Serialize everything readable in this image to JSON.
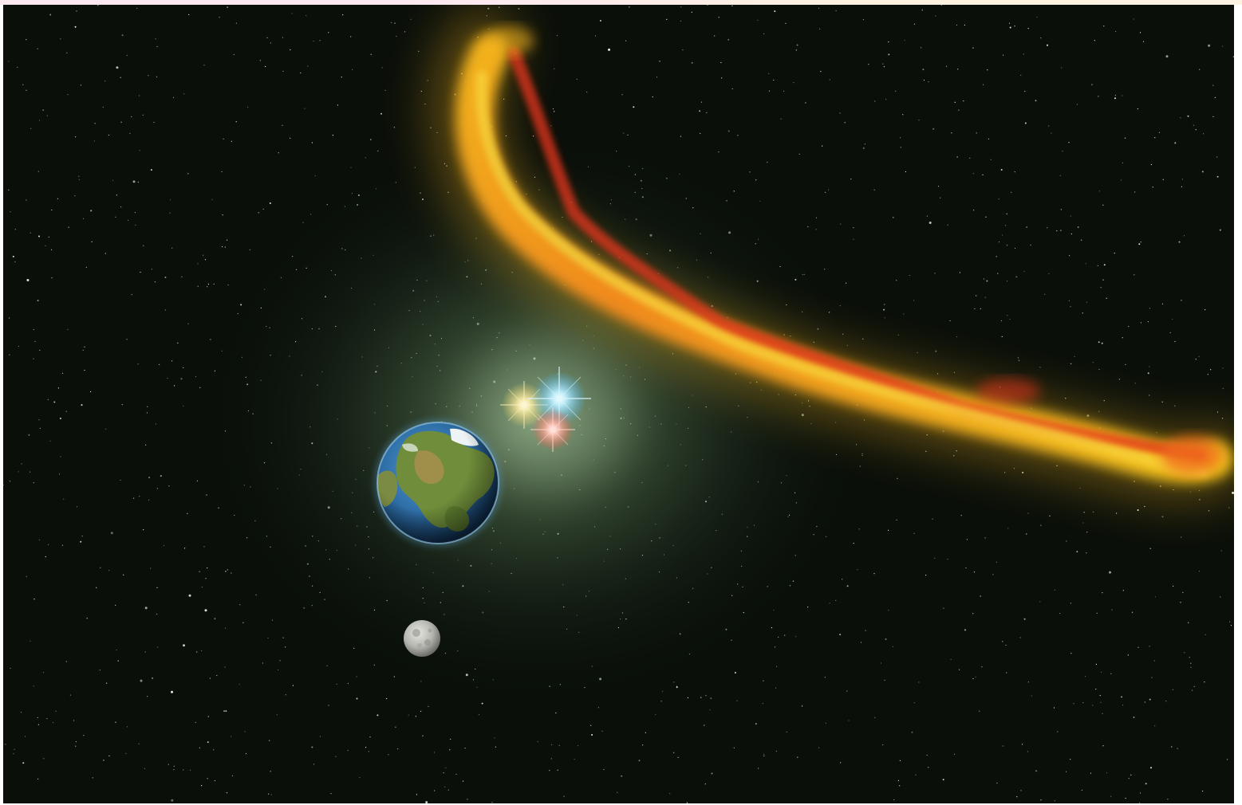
{
  "scene": {
    "type": "illustration",
    "objects": [
      {
        "name": "earth",
        "kind": "planet"
      },
      {
        "name": "moon",
        "kind": "moon"
      },
      {
        "name": "triple-star-system",
        "kind": "stars",
        "stars": [
          "yellow",
          "blue",
          "red"
        ]
      },
      {
        "name": "fiery-debris-arc",
        "kind": "stream"
      }
    ]
  },
  "colors": {
    "space": "#0a0f0a",
    "nebula_glow": "#6f8f6a",
    "fire_yellow": "#f2c21b",
    "fire_orange": "#f08a1c",
    "fire_red": "#e4341a",
    "ocean": "#2f6fa8",
    "land": "#6f8d3a",
    "moon": "#b9b9b4"
  }
}
